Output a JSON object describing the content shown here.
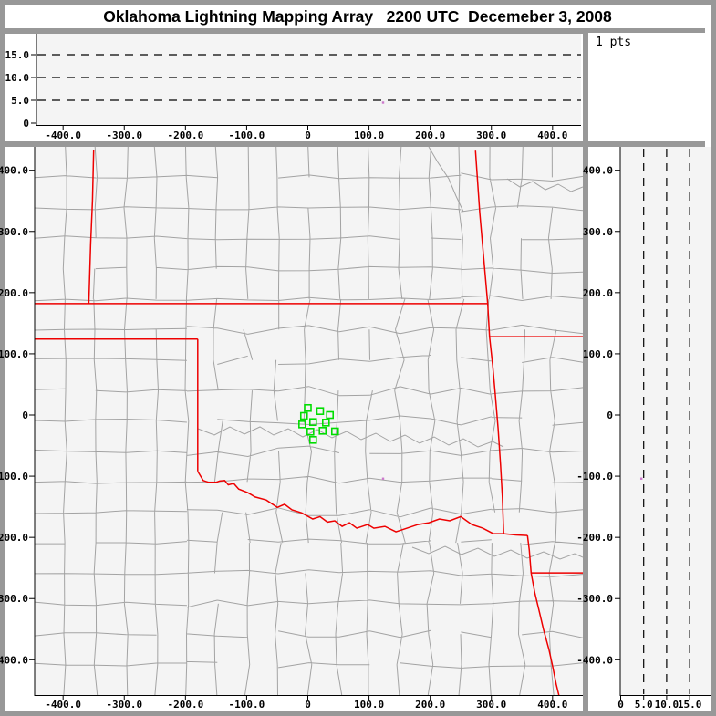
{
  "window": {
    "title": "Oklahoma Lightning Mapping Array   2200 UTC  Decemeber 3, 2008"
  },
  "histogram_panel": {
    "label": "1 pts"
  },
  "colors": {
    "frame": "#989898",
    "panel_bg": "#f4f4f4",
    "white": "#ffffff",
    "axis": "#000000",
    "county_line": "#a3a3a3",
    "state_border": "#ee0000",
    "station": "#00dd00",
    "lightning_point": "#cc7acc"
  },
  "chart_data": [
    {
      "id": "alt_vs_ew",
      "type": "scatter",
      "position": "top",
      "x_range_km": [
        -451,
        451
      ],
      "y_range_km": [
        0,
        19.6
      ],
      "x_ticks": {
        "values": [
          -400,
          -300,
          -200,
          -100,
          0,
          100,
          200,
          300,
          400
        ],
        "labels": [
          "-400.0",
          "-300.0",
          "-200.0",
          "-100.0",
          "0",
          "100.0",
          "200.0",
          "300.0",
          "400.0"
        ]
      },
      "y_ticks": {
        "values": [
          15,
          10,
          5,
          0
        ],
        "labels": [
          "15.0",
          "10.0",
          "5.0",
          "0"
        ]
      },
      "dashed_altitude_lines_km": [
        5,
        10,
        15
      ],
      "points": [
        {
          "ew_km": 123,
          "alt_km": 4.5
        }
      ]
    },
    {
      "id": "alt_histogram",
      "type": "histogram",
      "position": "top-right",
      "points_count": 1,
      "label": "1 pts",
      "bars": []
    },
    {
      "id": "map",
      "type": "map-scatter",
      "position": "main",
      "x_range_km": [
        -451,
        451
      ],
      "y_range_km": [
        -454,
        433
      ],
      "x_ticks": {
        "values": [
          -400,
          -300,
          -200,
          -100,
          0,
          100,
          200,
          300,
          400
        ],
        "labels": [
          "-400.0",
          "-300.0",
          "-200.0",
          "-100.0",
          "0",
          "100.0",
          "200.0",
          "300.0",
          "400.0"
        ]
      },
      "y_ticks": {
        "values": [
          400,
          300,
          200,
          100,
          0,
          -100,
          -200,
          -300,
          -400
        ],
        "labels": [
          "400.0",
          "300.0",
          "200.0",
          "100.0",
          "0",
          "-100.0",
          "-200.0",
          "-300.0",
          "-400.0"
        ]
      },
      "stations_km": [
        [
          0,
          11.5
        ],
        [
          20.1,
          6.4
        ],
        [
          36.1,
          0
        ],
        [
          -6.3,
          -1.5
        ],
        [
          8.6,
          -11.5
        ],
        [
          29.5,
          -12.4
        ],
        [
          -9.2,
          -15.4
        ],
        [
          4.2,
          -27.3
        ],
        [
          24.2,
          -25.8
        ],
        [
          44.4,
          -26.8
        ],
        [
          8.6,
          -40.7
        ]
      ],
      "points": [
        {
          "ew_km": 123,
          "ns_km": -104
        }
      ],
      "state_borders_km": [
        {
          "name": "colorado-kansas",
          "pts": [
            [
              -350,
              433
            ],
            [
              -352,
              350
            ],
            [
              -355,
              280
            ],
            [
              -358,
              182
            ]
          ]
        },
        {
          "name": "kansas-oklahoma",
          "pts": [
            [
              -451,
              182
            ],
            [
              294,
              182
            ]
          ]
        },
        {
          "name": "kansas-missouri",
          "pts": [
            [
              274,
              432
            ],
            [
              281,
              330
            ],
            [
              287,
              262
            ],
            [
              294,
              182
            ]
          ]
        },
        {
          "name": "oklahoma-missouri",
          "pts": [
            [
              294,
              182
            ],
            [
              297,
              128
            ]
          ]
        },
        {
          "name": "missouri-arkansas",
          "pts": [
            [
              297,
              128
            ],
            [
              451,
              128
            ]
          ]
        },
        {
          "name": "oklahoma-panhandle-south",
          "pts": [
            [
              -451,
              124
            ],
            [
              -180,
              124
            ]
          ]
        },
        {
          "name": "texas-oklahoma-100w",
          "pts": [
            [
              -180,
              124
            ],
            [
              -180,
              -92
            ]
          ]
        },
        {
          "name": "red-river",
          "pts": [
            [
              -180,
              -92
            ],
            [
              -171,
              -107
            ],
            [
              -162,
              -110
            ],
            [
              -150,
              -110
            ],
            [
              -144,
              -108
            ],
            [
              -136,
              -107
            ],
            [
              -130,
              -114
            ],
            [
              -121,
              -112
            ],
            [
              -113,
              -121
            ],
            [
              -98,
              -127
            ],
            [
              -86,
              -134
            ],
            [
              -68,
              -139
            ],
            [
              -50,
              -151
            ],
            [
              -38,
              -146
            ],
            [
              -26,
              -155
            ],
            [
              -10,
              -160
            ],
            [
              8,
              -170
            ],
            [
              20,
              -166
            ],
            [
              32,
              -175
            ],
            [
              44,
              -173
            ],
            [
              56,
              -182
            ],
            [
              68,
              -176
            ],
            [
              80,
              -185
            ],
            [
              98,
              -179
            ],
            [
              108,
              -185
            ],
            [
              126,
              -182
            ],
            [
              144,
              -191
            ],
            [
              162,
              -185
            ],
            [
              180,
              -179
            ],
            [
              198,
              -176
            ],
            [
              215,
              -170
            ],
            [
              232,
              -173
            ],
            [
              250,
              -166
            ],
            [
              268,
              -179
            ],
            [
              286,
              -185
            ],
            [
              303,
              -194
            ],
            [
              320,
              -194
            ]
          ]
        },
        {
          "name": "oklahoma-arkansas",
          "pts": [
            [
              297,
              128
            ],
            [
              302,
              82
            ],
            [
              306,
              37
            ],
            [
              311,
              -22
            ],
            [
              315,
              -82
            ],
            [
              318,
              -134
            ],
            [
              320,
              -194
            ]
          ]
        },
        {
          "name": "river-to-tripoint",
          "pts": [
            [
              320,
              -194
            ],
            [
              340,
              -196
            ],
            [
              359,
              -197
            ]
          ]
        },
        {
          "name": "texas-arkansas",
          "pts": [
            [
              359,
              -197
            ],
            [
              362,
              -221
            ],
            [
              365,
              -258
            ],
            [
              371,
              -291
            ],
            [
              379,
              -324
            ],
            [
              385,
              -350
            ],
            [
              394,
              -383
            ],
            [
              400,
              -410
            ],
            [
              406,
              -440
            ],
            [
              412,
              -465
            ]
          ]
        },
        {
          "name": "arkansas-louisiana",
          "pts": [
            [
              365,
              -258
            ],
            [
              451,
              -258
            ]
          ]
        }
      ]
    },
    {
      "id": "alt_vs_ns",
      "type": "scatter",
      "position": "right",
      "x_range_km": [
        0,
        19.5
      ],
      "y_range_km": [
        -454,
        433
      ],
      "x_ticks": {
        "values": [
          0,
          5,
          10,
          15
        ],
        "labels": [
          "0",
          "5.0",
          "10.0",
          "15.0"
        ]
      },
      "y_ticks": {
        "values": [
          400,
          300,
          200,
          100,
          0,
          -100,
          -200,
          -300,
          -400
        ],
        "labels": [
          "400.0",
          "300.0",
          "200.0",
          "100.0",
          "0",
          "-100.0",
          "-200.0",
          "-300.0",
          "-400.0"
        ]
      },
      "dashed_altitude_lines_km": [
        5,
        10,
        15
      ],
      "points": [
        {
          "ns_km": -104,
          "alt_km": 4.5
        }
      ]
    }
  ]
}
